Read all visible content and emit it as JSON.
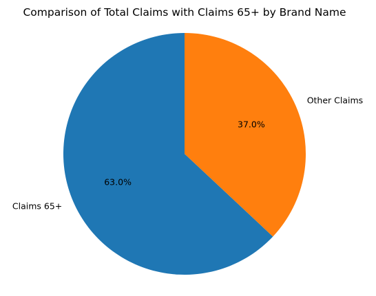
{
  "chart_data": {
    "type": "pie",
    "title": "Comparison of Total Claims with Claims 65+ by Brand Name",
    "start_angle_deg": 90,
    "direction": "counterclockwise",
    "legend": "none",
    "slices": [
      {
        "label": "Claims 65+",
        "value": 63.0,
        "pct_label": "63.0%",
        "color": "#1f77b4"
      },
      {
        "label": "Other Claims",
        "value": 37.0,
        "pct_label": "37.0%",
        "color": "#ff7f0e"
      }
    ]
  }
}
